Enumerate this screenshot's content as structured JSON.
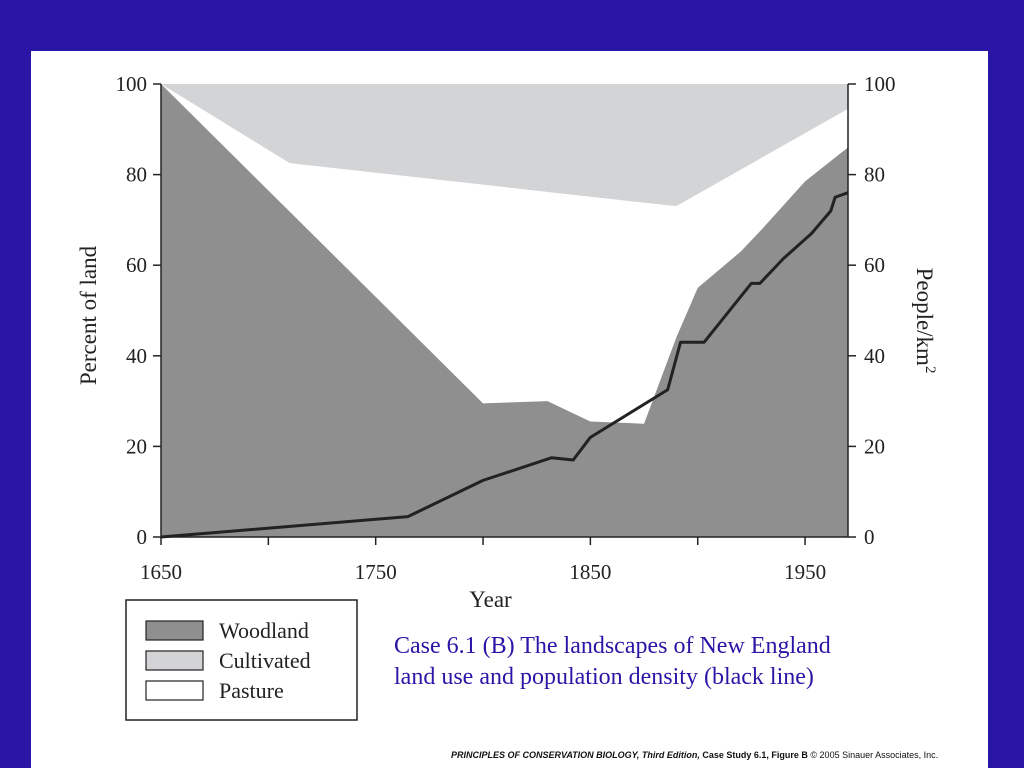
{
  "chart_data": {
    "type": "area",
    "x": [
      1650,
      1710,
      1800,
      1830,
      1850,
      1875,
      1890,
      1900,
      1920,
      1930,
      1950,
      1970
    ],
    "series": [
      {
        "name": "Woodland",
        "color": "#8f8f8f",
        "x": [
          1650,
          1800,
          1830,
          1850,
          1875,
          1890,
          1900,
          1920,
          1930,
          1950,
          1970
        ],
        "values": [
          100,
          29.5,
          30,
          25.5,
          25,
          44,
          55,
          63,
          68,
          78.5,
          86
        ]
      },
      {
        "name": "Cultivated",
        "color": "#d3d4d6",
        "x": [
          1650,
          1710,
          1890,
          1970
        ],
        "values": [
          100,
          82.5,
          73,
          94.5
        ]
      },
      {
        "name": "Pasture",
        "color": "#ffffff"
      }
    ],
    "population_line": {
      "color": "#222222",
      "axis": "right",
      "x": [
        1650,
        1765,
        1800,
        1832,
        1842,
        1850,
        1886,
        1892,
        1903,
        1925,
        1929,
        1940,
        1953,
        1962,
        1964,
        1970
      ],
      "values": [
        0,
        4.5,
        12.5,
        17.5,
        17,
        22,
        32.5,
        43,
        43,
        56,
        56,
        61.5,
        67,
        72,
        75,
        76
      ]
    },
    "xlim": [
      1650,
      1970
    ],
    "ylim": [
      0,
      100
    ],
    "y2lim": [
      0,
      100
    ],
    "x_ticks": [
      "1650",
      "1750",
      "1850",
      "1950"
    ],
    "y_ticks": [
      "0",
      "20",
      "40",
      "60",
      "80",
      "100"
    ],
    "y2_ticks": [
      "0",
      "20",
      "40",
      "60",
      "80",
      "100"
    ],
    "xlabel": "Year",
    "ylabel": "Percent of land",
    "y2label": "People/km",
    "y2label_sup": "2",
    "legend": {
      "placement": "bottom-left",
      "items": [
        "Woodland",
        "Cultivated",
        "Pasture"
      ]
    }
  },
  "caption": {
    "line1": "Case 6.1 (B)  The landscapes of New England",
    "line2": "land use and population density (black line)"
  },
  "footer": {
    "book_title": "PRINCIPLES OF CONSERVATION BIOLOGY, Third Edition,",
    "figure_ref": "Case Study 6.1, Figure B",
    "copyright": "© 2005 Sinauer Associates, Inc."
  },
  "colors": {
    "background": "#2a16a6",
    "caption_text": "#2a16a6",
    "woodland": "#8f8f8f",
    "cultivated": "#d3d4d6",
    "pasture": "#ffffff",
    "population_line": "#222222"
  }
}
